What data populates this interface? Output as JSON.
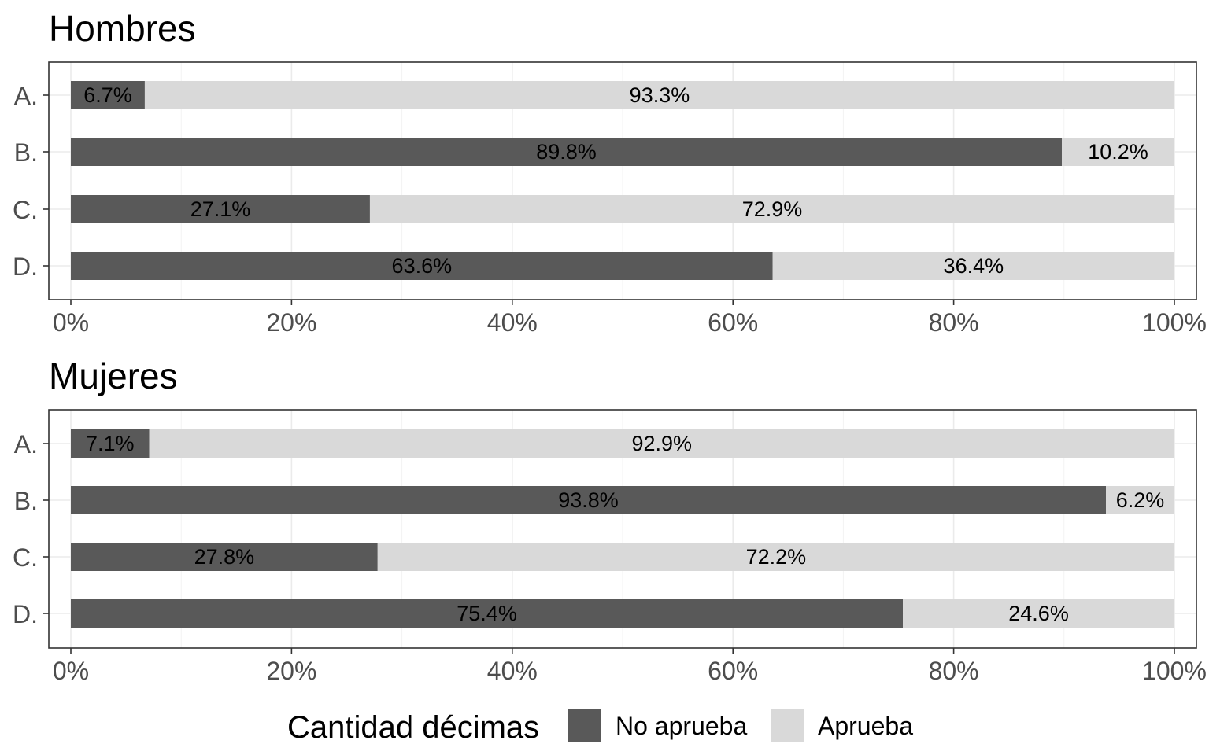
{
  "chart_data": [
    {
      "type": "bar",
      "orientation": "horizontal",
      "stacked": true,
      "title": "Hombres",
      "categories": [
        "A.",
        "B.",
        "C.",
        "D."
      ],
      "series": [
        {
          "name": "No aprueba",
          "values": [
            6.7,
            89.8,
            27.1,
            63.6
          ],
          "labels": [
            "6.7%",
            "89.8%",
            "27.1%",
            "63.6%"
          ],
          "color": "#595959"
        },
        {
          "name": "Aprueba",
          "values": [
            93.3,
            10.2,
            72.9,
            36.4
          ],
          "labels": [
            "93.3%",
            "10.2%",
            "72.9%",
            "36.4%"
          ],
          "color": "#d9d9d9"
        }
      ],
      "xlim": [
        0,
        100
      ],
      "xticks": [
        "0%",
        "20%",
        "40%",
        "60%",
        "80%",
        "100%"
      ],
      "grid": true
    },
    {
      "type": "bar",
      "orientation": "horizontal",
      "stacked": true,
      "title": "Mujeres",
      "categories": [
        "A.",
        "B.",
        "C.",
        "D."
      ],
      "series": [
        {
          "name": "No aprueba",
          "values": [
            7.1,
            93.8,
            27.8,
            75.4
          ],
          "labels": [
            "7.1%",
            "93.8%",
            "27.8%",
            "75.4%"
          ],
          "color": "#595959"
        },
        {
          "name": "Aprueba",
          "values": [
            92.9,
            6.2,
            72.2,
            24.6
          ],
          "labels": [
            "92.9%",
            "6.2%",
            "72.2%",
            "24.6%"
          ],
          "color": "#d9d9d9"
        }
      ],
      "xlim": [
        0,
        100
      ],
      "xticks": [
        "0%",
        "20%",
        "40%",
        "60%",
        "80%",
        "100%"
      ],
      "grid": true
    }
  ],
  "legend": {
    "title": "Cantidad décimas",
    "placement": "bottom",
    "items": [
      {
        "label": "No aprueba",
        "color": "#595959"
      },
      {
        "label": "Aprueba",
        "color": "#d9d9d9"
      }
    ]
  }
}
